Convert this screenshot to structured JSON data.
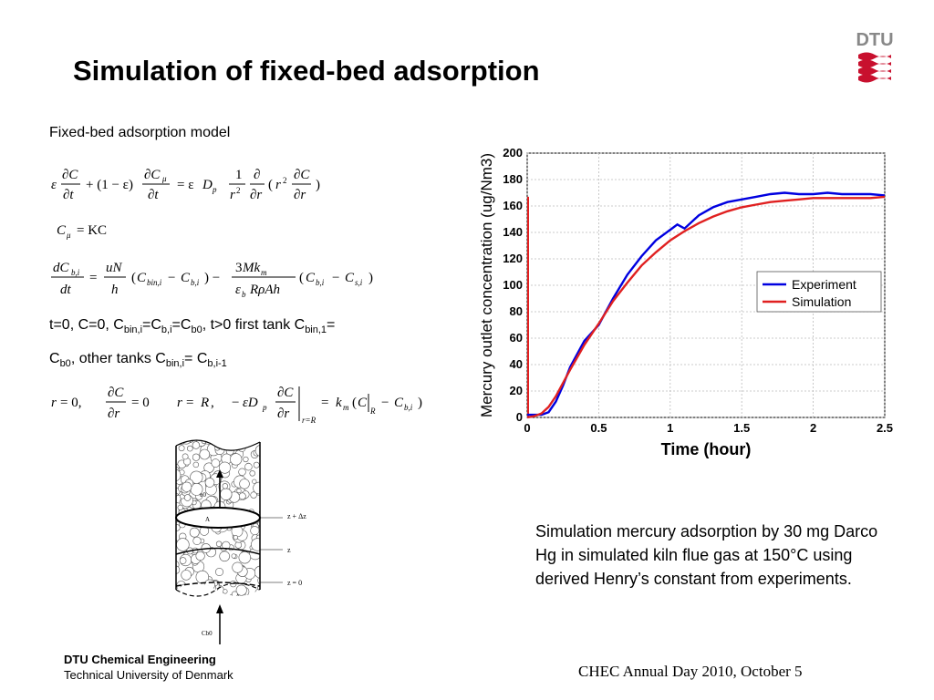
{
  "slide": {
    "title": "Simulation of fixed-bed adsorption",
    "model_label": "Fixed-bed adsorption model",
    "condition_line1_parts": [
      "t=0, C=0, C",
      "bin,i",
      "=C",
      "b,i",
      "=C",
      "b0",
      ", t>0 first tank C",
      "bin,1",
      "="
    ],
    "condition_line2_parts": [
      "C",
      "b0",
      ", other tanks  C",
      "bin,i",
      "= C",
      "b,i-1"
    ],
    "caption": "Simulation mercury adsorption by 30 mg Darco Hg in simulated kiln flue gas at 150°C using derived Henry’s constant from experiments.",
    "footer_dept": "DTU Chemical Engineering",
    "footer_univ": "Technical University of Denmark",
    "footer_event": "CHEC Annual Day 2010, October 5",
    "logo_text": "DTU",
    "logo_color": "#c8102e"
  },
  "equations": {
    "eq1": "ε ∂C/∂t + (1 − ε) ∂Cμ/∂t = ε Dp (1/r²) ∂/∂r (r² ∂C/∂r)",
    "eq2": "Cμ = KC",
    "eq3": "dCb,i/dt = uN/h (Cbin,i − Cb,i) − 3Mkm/(εb R ρ A h) (Cb,i − Cs,i)",
    "bc1": "r = 0,  ∂C/∂r = 0",
    "bc2": "r = R,  −ε Dp ∂C/∂r |r=R = km (C|R − Cb,i)"
  },
  "diagram": {
    "u0_label": "u0",
    "area_label": "A",
    "z_dz_label": "z + Δz",
    "z_label": "z",
    "z0_label": "z = 0",
    "inlet_label": "Cb0"
  },
  "chart_data": {
    "type": "line",
    "xlabel": "Time (hour)",
    "ylabel": "Mercury outlet concentration (ug/Nm3)",
    "xlim": [
      0,
      2.5
    ],
    "ylim": [
      0,
      200
    ],
    "xticks": [
      0,
      0.5,
      1,
      1.5,
      2,
      2.5
    ],
    "xtick_labels": [
      "0",
      "0.5",
      "1",
      "1.5",
      "2",
      "2.5"
    ],
    "yticks": [
      0,
      20,
      40,
      60,
      80,
      100,
      120,
      140,
      160,
      180,
      200
    ],
    "grid": true,
    "legend_position": "right",
    "series": [
      {
        "name": "Experiment",
        "color": "#0000e0",
        "x": [
          0,
          0.1,
          0.15,
          0.2,
          0.25,
          0.3,
          0.4,
          0.5,
          0.6,
          0.7,
          0.8,
          0.9,
          1.0,
          1.05,
          1.1,
          1.2,
          1.3,
          1.4,
          1.5,
          1.6,
          1.7,
          1.8,
          1.9,
          2.0,
          2.1,
          2.2,
          2.3,
          2.4,
          2.5
        ],
        "values": [
          2,
          2,
          4,
          12,
          24,
          38,
          58,
          70,
          90,
          108,
          122,
          134,
          142,
          146,
          143,
          153,
          159,
          163,
          165,
          167,
          169,
          170,
          169,
          169,
          170,
          169,
          169,
          169,
          168
        ]
      },
      {
        "name": "Simulation",
        "color": "#e02020",
        "x": [
          0,
          0.05,
          0.1,
          0.15,
          0.2,
          0.3,
          0.4,
          0.5,
          0.6,
          0.7,
          0.8,
          0.9,
          1.0,
          1.1,
          1.2,
          1.3,
          1.4,
          1.5,
          1.6,
          1.7,
          1.8,
          1.9,
          2.0,
          2.2,
          2.4,
          2.5
        ],
        "values": [
          0,
          1,
          3,
          8,
          16,
          36,
          55,
          71,
          88,
          102,
          115,
          125,
          134,
          141,
          147,
          152,
          156,
          159,
          161,
          163,
          164,
          165,
          166,
          166,
          166,
          167
        ]
      }
    ],
    "initial_spike": {
      "series": "Simulation",
      "x": 0,
      "value": 167
    }
  }
}
